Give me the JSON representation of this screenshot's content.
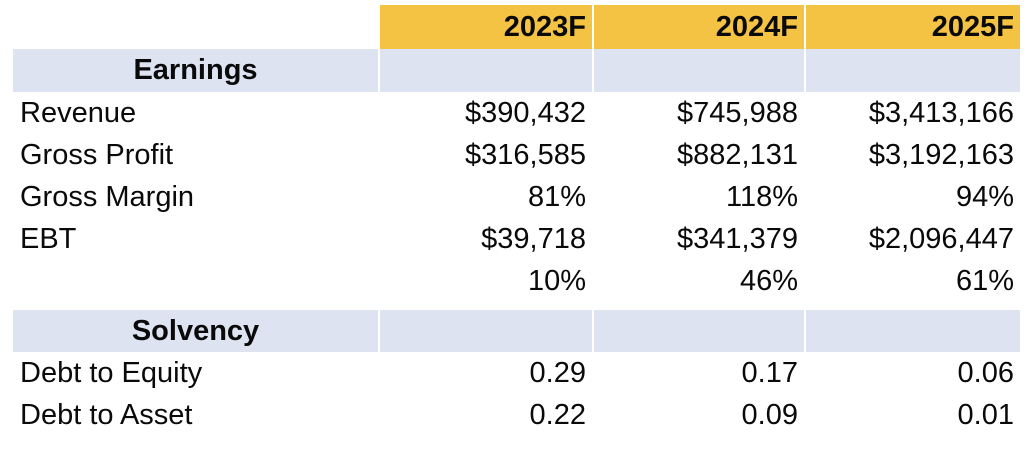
{
  "chart_data": {
    "type": "table",
    "columns": [
      "",
      "2023F",
      "2024F",
      "2025F"
    ],
    "sections": [
      {
        "title": "Earnings",
        "rows": [
          {
            "label": "Revenue",
            "values": [
              "$390,432",
              "$745,988",
              "$3,413,166"
            ]
          },
          {
            "label": "Gross Profit",
            "values": [
              "$316,585",
              "$882,131",
              "$3,192,163"
            ]
          },
          {
            "label": "Gross Margin",
            "values": [
              "81%",
              "118%",
              "94%"
            ]
          },
          {
            "label": "EBT",
            "values": [
              "$39,718",
              "$341,379",
              "$2,096,447"
            ]
          },
          {
            "label": "",
            "values": [
              "10%",
              "46%",
              "61%"
            ]
          }
        ]
      },
      {
        "title": "Solvency",
        "rows": [
          {
            "label": "Debt to Equity",
            "values": [
              "0.29",
              "0.17",
              "0.06"
            ]
          },
          {
            "label": "Debt to Asset",
            "values": [
              "0.22",
              "0.09",
              "0.01"
            ]
          }
        ]
      }
    ],
    "layout": {
      "grid": "off",
      "header_position": "top",
      "value_alignment": "right"
    },
    "colors": {
      "header_bg": "#F4C344",
      "section_bg": "#DDE3F1",
      "text": "#0A0A0A",
      "background": "#FFFFFF"
    }
  }
}
